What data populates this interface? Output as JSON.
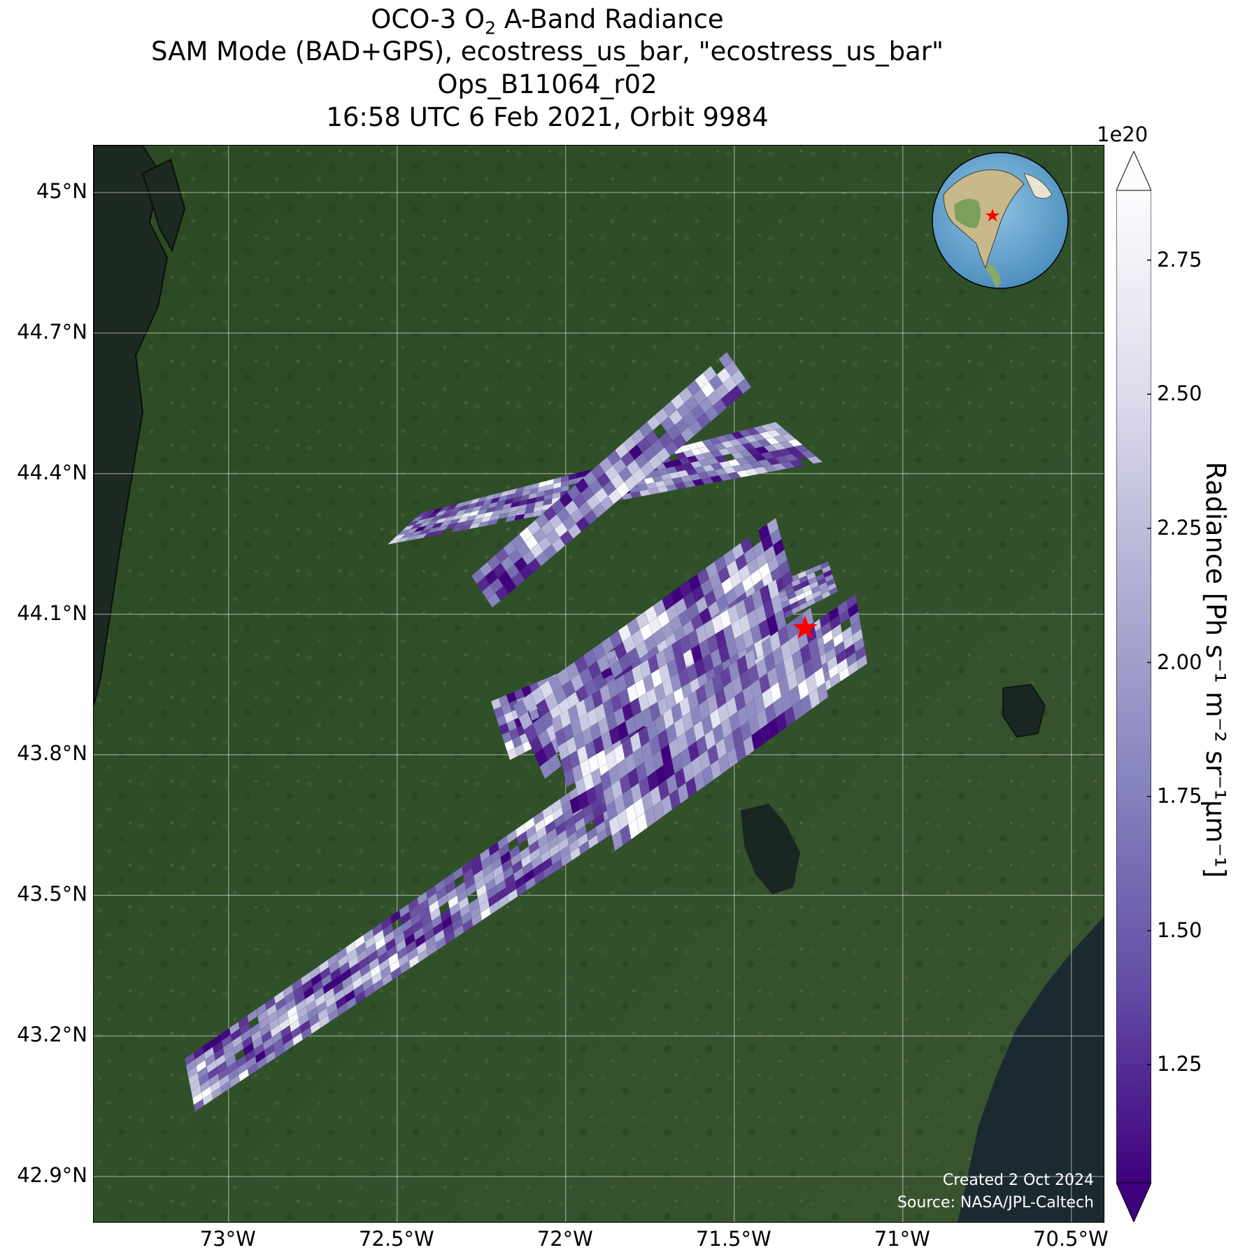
{
  "title": {
    "line1_pre": "OCO-3 O",
    "line1_sub": "2",
    "line1_post": " A-Band Radiance",
    "line2": "SAM Mode (BAD+GPS), ecostress_us_bar, \"ecostress_us_bar\"",
    "line3": "Ops_B11064_r02",
    "line4": "16:58 UTC 6 Feb 2021, Orbit 9984"
  },
  "map": {
    "extent": {
      "lon": [
        -73.4,
        -70.4
      ],
      "lat": [
        42.8,
        45.1
      ]
    },
    "lat_ticks": [
      "45°N",
      "44.7°N",
      "44.4°N",
      "44.1°N",
      "43.8°N",
      "43.5°N",
      "43.2°N",
      "42.9°N"
    ],
    "lon_ticks": [
      "73°W",
      "72.5°W",
      "72°W",
      "71.5°W",
      "71°W",
      "70.5°W"
    ],
    "target_marker": {
      "lon": -71.29,
      "lat": 44.07,
      "color": "#ff0000",
      "icon": "star-icon"
    },
    "background": "satellite imagery (forest green, lakes dark)",
    "grid": true,
    "inset_globe": {
      "icon": "globe-icon",
      "marker": "star-icon"
    }
  },
  "colorbar": {
    "offset_label": "1e20",
    "ticks": [
      "2.75",
      "2.50",
      "2.25",
      "2.00",
      "1.75",
      "1.50",
      "1.25"
    ],
    "range": [
      1.03,
      2.88
    ],
    "label": "Radiance [Ph s⁻¹ m⁻² sr⁻¹μm⁻¹]",
    "colormap": "Purples_r",
    "color_low": "#3f007d",
    "color_high": "#fcfbfd"
  },
  "credits": {
    "created": "Created 2 Oct 2024",
    "source": "Source: NASA/JPL-Caltech"
  }
}
